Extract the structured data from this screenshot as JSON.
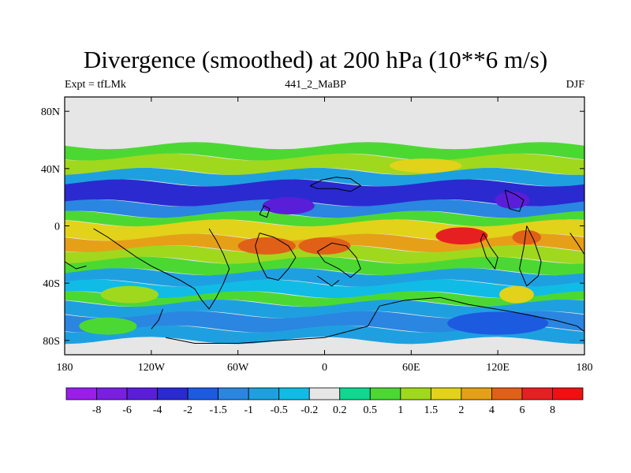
{
  "chart_data": {
    "type": "heatmap",
    "title": "Divergence (smoothed) at 200 hPa (10**6 m/s)",
    "subtitle_left": "Expt = tfLMk",
    "subtitle_center": "441_2_MaBP",
    "subtitle_right": "DJF",
    "x_ticks": [
      "180",
      "120W",
      "60W",
      "0",
      "60E",
      "120E",
      "180"
    ],
    "x_tick_values": [
      -180,
      -120,
      -60,
      0,
      60,
      120,
      180
    ],
    "y_ticks": [
      "80N",
      "40N",
      "0",
      "40S",
      "80S"
    ],
    "y_tick_values": [
      80,
      40,
      0,
      -40,
      -80
    ],
    "xlim": [
      -180,
      180
    ],
    "ylim": [
      -90,
      90
    ],
    "colorbar": {
      "levels": [
        "-8",
        "-6",
        "-4",
        "-2",
        "-1.5",
        "-1",
        "-0.5",
        "-0.2",
        "0.2",
        "0.5",
        "1",
        "1.5",
        "2",
        "4",
        "6",
        "8"
      ],
      "colors": [
        "#9a1ee8",
        "#7a1ee0",
        "#5a1ed8",
        "#2a2ad0",
        "#1c5ae0",
        "#2a86e0",
        "#1ea0e0",
        "#10bce6",
        "#e6e6e6",
        "#10d890",
        "#4cd832",
        "#a0d81e",
        "#e2d21a",
        "#e6a018",
        "#e06018",
        "#e62020",
        "#f01010"
      ]
    },
    "bands": [
      {
        "lat_min": 48,
        "lat_max": 56,
        "value": 0.6
      },
      {
        "lat_min": 38,
        "lat_max": 48,
        "value": 1.0
      },
      {
        "lat_min": 30,
        "lat_max": 38,
        "value": -0.6
      },
      {
        "lat_min": 16,
        "lat_max": 30,
        "value": -2.5
      },
      {
        "lat_min": 8,
        "lat_max": 16,
        "value": -1.2
      },
      {
        "lat_min": 2,
        "lat_max": 8,
        "value": 0.7
      },
      {
        "lat_min": -8,
        "lat_max": 2,
        "value": 1.7
      },
      {
        "lat_min": -16,
        "lat_max": -8,
        "value": 2.6
      },
      {
        "lat_min": -24,
        "lat_max": -16,
        "value": 1.3
      },
      {
        "lat_min": -32,
        "lat_max": -24,
        "value": 0.6
      },
      {
        "lat_min": -40,
        "lat_max": -32,
        "value": -0.7
      },
      {
        "lat_min": -48,
        "lat_max": -40,
        "value": -0.3
      },
      {
        "lat_min": -54,
        "lat_max": -48,
        "value": 0.6
      },
      {
        "lat_min": -62,
        "lat_max": -54,
        "value": -0.6
      },
      {
        "lat_min": -72,
        "lat_max": -62,
        "value": -1.1
      },
      {
        "lat_min": -80,
        "lat_max": -72,
        "value": -0.6
      }
    ],
    "blobs": [
      {
        "lon": 70,
        "lat": 42,
        "rlon": 25,
        "rlat": 5,
        "value": 1.7
      },
      {
        "lon": -25,
        "lat": 14,
        "rlon": 18,
        "rlat": 6,
        "value": -4.5
      },
      {
        "lon": 130,
        "lat": 18,
        "rlon": 12,
        "rlat": 6,
        "value": -4.5
      },
      {
        "lon": -40,
        "lat": -14,
        "rlon": 20,
        "rlat": 6,
        "value": 4.5
      },
      {
        "lon": 0,
        "lat": -14,
        "rlon": 18,
        "rlat": 6,
        "value": 4.5
      },
      {
        "lon": 95,
        "lat": -7,
        "rlon": 18,
        "rlat": 6,
        "value": 6.5
      },
      {
        "lon": 140,
        "lat": -8,
        "rlon": 10,
        "rlat": 5,
        "value": 5.0
      },
      {
        "lon": 133,
        "lat": -48,
        "rlon": 12,
        "rlat": 6,
        "value": 1.7
      },
      {
        "lon": 120,
        "lat": -68,
        "rlon": 35,
        "rlat": 8,
        "value": -1.7
      },
      {
        "lon": -135,
        "lat": -48,
        "rlon": 20,
        "rlat": 6,
        "value": 1.2
      },
      {
        "lon": -150,
        "lat": -70,
        "rlon": 20,
        "rlat": 6,
        "value": 0.7
      }
    ]
  }
}
